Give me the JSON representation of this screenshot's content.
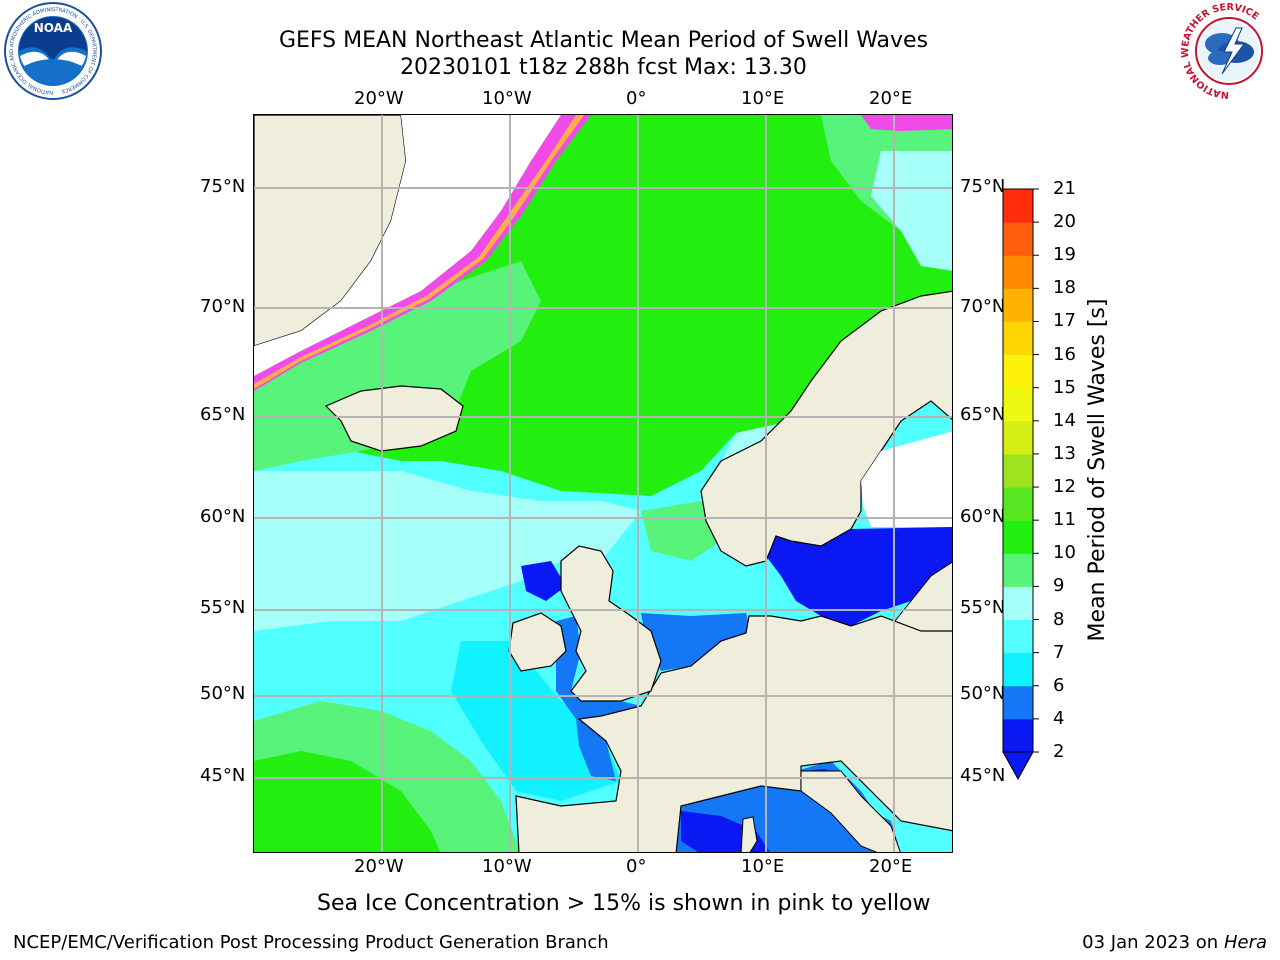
{
  "header": {
    "title_line1": "GEFS MEAN Northeast Atlantic Mean Period of Swell Waves",
    "title_line2": "20230101 t18z 288h fcst   Max: 13.30"
  },
  "logos": {
    "noaa_text": "NOAA",
    "noaa_ring_text": "NATIONAL OCEANIC AND ATMOSPHERIC ADMINISTRATION · U.S. DEPARTMENT OF COMMERCE",
    "nws_ring_text": "NATIONAL WEATHER SERVICE"
  },
  "map": {
    "lon_labels": [
      "20°W",
      "10°W",
      "0°",
      "10°E",
      "20°E"
    ],
    "lat_labels": [
      "75°N",
      "70°N",
      "65°N",
      "60°N",
      "55°N",
      "50°N",
      "45°N"
    ],
    "colors": {
      "ocean_green": "#22ee10",
      "ocean_lightgreen": "#58f37a",
      "ocean_paleCyan": "#a5fff8",
      "ocean_cyan": "#52ffff",
      "ocean_brightCyan": "#12f1ff",
      "ocean_blue": "#1477f5",
      "ocean_deepBlue": "#0a18f3",
      "land": "#efeddc",
      "ice_pink": "#f04ae8",
      "ice_orange": "#ffae4b",
      "grid": "#b4b4b4"
    }
  },
  "colorbar": {
    "label": "Mean Period of Swell Waves [s]",
    "tick_labels": [
      "2",
      "4",
      "6",
      "7",
      "8",
      "9",
      "10",
      "11",
      "12",
      "13",
      "14",
      "15",
      "16",
      "17",
      "18",
      "19",
      "20",
      "21"
    ],
    "colors": [
      "#0a18f3",
      "#1477f5",
      "#12f1ff",
      "#52ffff",
      "#a5fff8",
      "#58f37a",
      "#22ee10",
      "#57e722",
      "#9de41e",
      "#d5ee14",
      "#eff813",
      "#fff20a",
      "#ffd602",
      "#ffb300",
      "#ff8a00",
      "#ff5e0f",
      "#ff2d0a"
    ]
  },
  "caption": "Sea Ice Concentration > 15% is shown in pink to yellow",
  "footer": {
    "left": "NCEP/EMC/Verification Post Processing Product Generation Branch",
    "right_prefix": "03 Jan 2023 on ",
    "right_host": "Hera"
  }
}
